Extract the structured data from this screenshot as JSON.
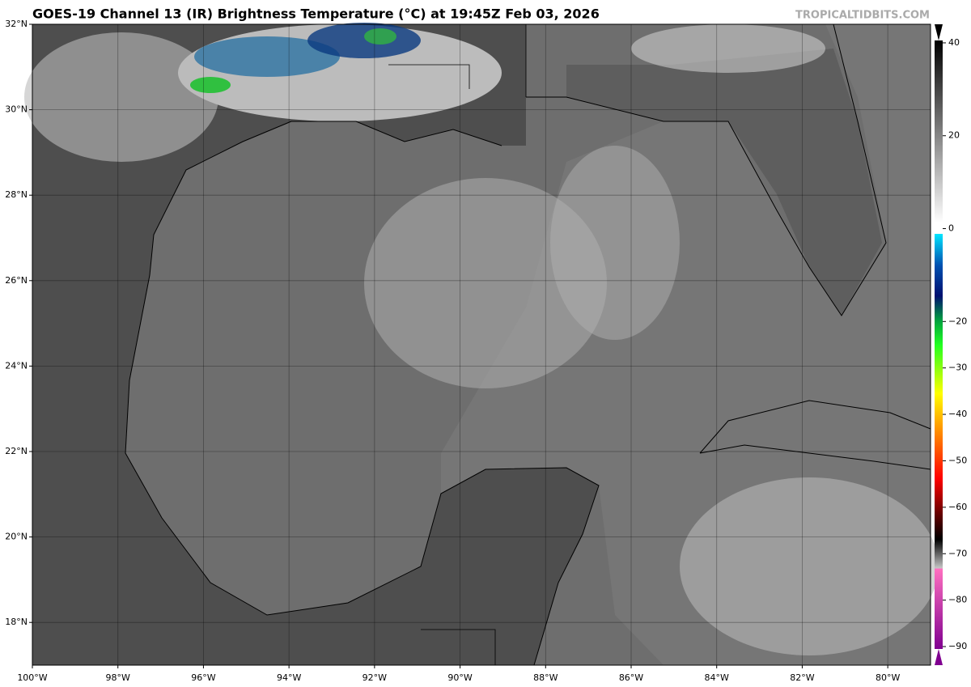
{
  "title": "GOES-19 Channel 13 (IR) Brightness Temperature (°C) at 19:45Z Feb 03, 2026",
  "watermark": "TROPICALTIDBITS.COM",
  "map": {
    "xlim": [
      -100,
      -79
    ],
    "ylim": [
      17,
      32
    ],
    "lonticks": [
      {
        "value": -100,
        "label": "100°W"
      },
      {
        "value": -98,
        "label": "98°W"
      },
      {
        "value": -96,
        "label": "96°W"
      },
      {
        "value": -94,
        "label": "94°W"
      },
      {
        "value": -92,
        "label": "92°W"
      },
      {
        "value": -90,
        "label": "90°W"
      },
      {
        "value": -88,
        "label": "88°W"
      },
      {
        "value": -86,
        "label": "86°W"
      },
      {
        "value": -84,
        "label": "84°W"
      },
      {
        "value": -82,
        "label": "82°W"
      },
      {
        "value": -80,
        "label": "80°W"
      }
    ],
    "latticks": [
      {
        "value": 32,
        "label": "32°N"
      },
      {
        "value": 30,
        "label": "30°N"
      },
      {
        "value": 28,
        "label": "28°N"
      },
      {
        "value": 26,
        "label": "26°N"
      },
      {
        "value": 24,
        "label": "24°N"
      },
      {
        "value": 22,
        "label": "22°N"
      },
      {
        "value": 20,
        "label": "20°N"
      },
      {
        "value": 18,
        "label": "18°N"
      }
    ]
  },
  "colorbar": {
    "lim": [
      -94,
      44
    ],
    "ticks": [
      40,
      20,
      0,
      {
        "value": -20,
        "label": "−20"
      },
      {
        "value": -30,
        "label": "−30"
      },
      {
        "value": -40,
        "label": "−40"
      },
      {
        "value": -50,
        "label": "−50"
      },
      {
        "value": -60,
        "label": "−60"
      },
      {
        "value": -70,
        "label": "−70"
      },
      {
        "value": -80,
        "label": "−80"
      },
      {
        "value": -90,
        "label": "−90"
      }
    ]
  }
}
